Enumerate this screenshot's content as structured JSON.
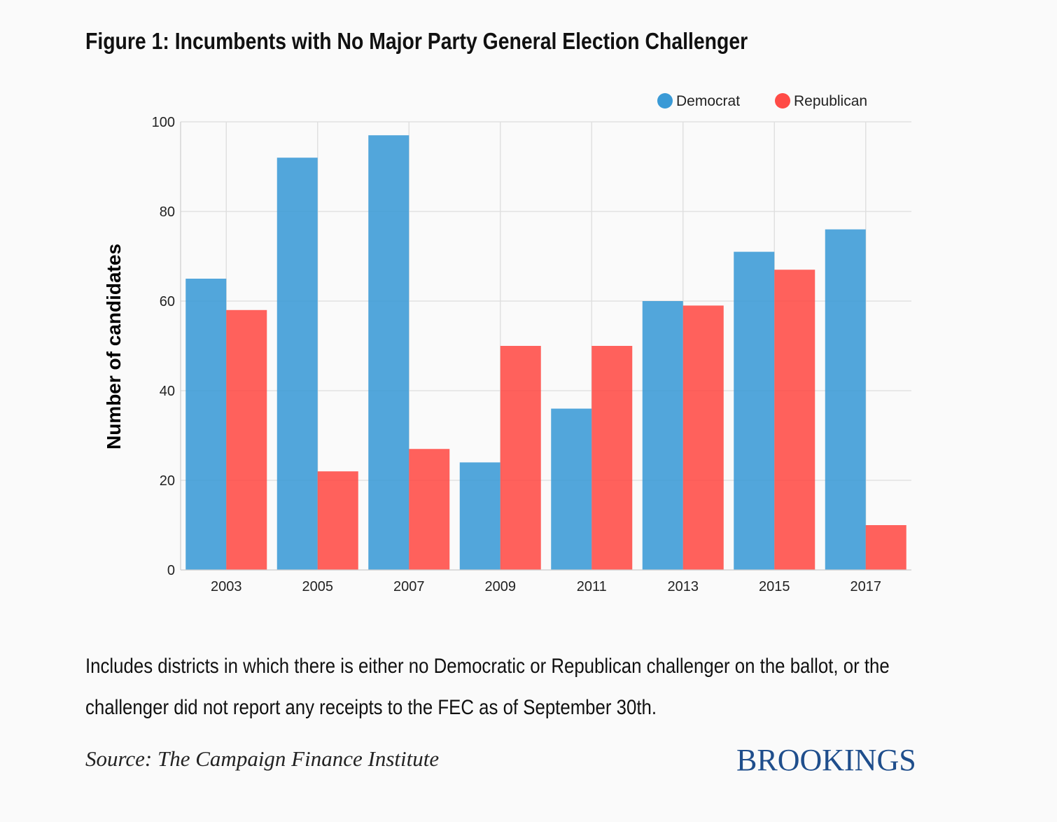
{
  "title": "Figure 1: Incumbents with No Major Party General Election Challenger",
  "note": "Includes districts in which there is either no Democratic or Republican challenger on the ballot, or the challenger did not report any receipts to the FEC as of September 30th.",
  "source": "Source: The Campaign Finance Institute",
  "brand": "BROOKINGS",
  "colors": {
    "democrat": "#3a9ad6",
    "republican": "#ff4b46"
  },
  "chart_data": {
    "type": "bar",
    "categories": [
      "2003",
      "2005",
      "2007",
      "2009",
      "2011",
      "2013",
      "2015",
      "2017"
    ],
    "series": [
      {
        "name": "Democrat",
        "values": [
          65,
          92,
          97,
          24,
          36,
          60,
          71,
          76
        ]
      },
      {
        "name": "Republican",
        "values": [
          58,
          22,
          27,
          50,
          50,
          59,
          67,
          10
        ]
      }
    ],
    "ylabel": "Number of candidates",
    "xlabel": "",
    "ylim": [
      0,
      100
    ],
    "yticks": [
      0,
      20,
      40,
      60,
      80,
      100
    ],
    "grid": true,
    "legend_position": "top-right"
  }
}
